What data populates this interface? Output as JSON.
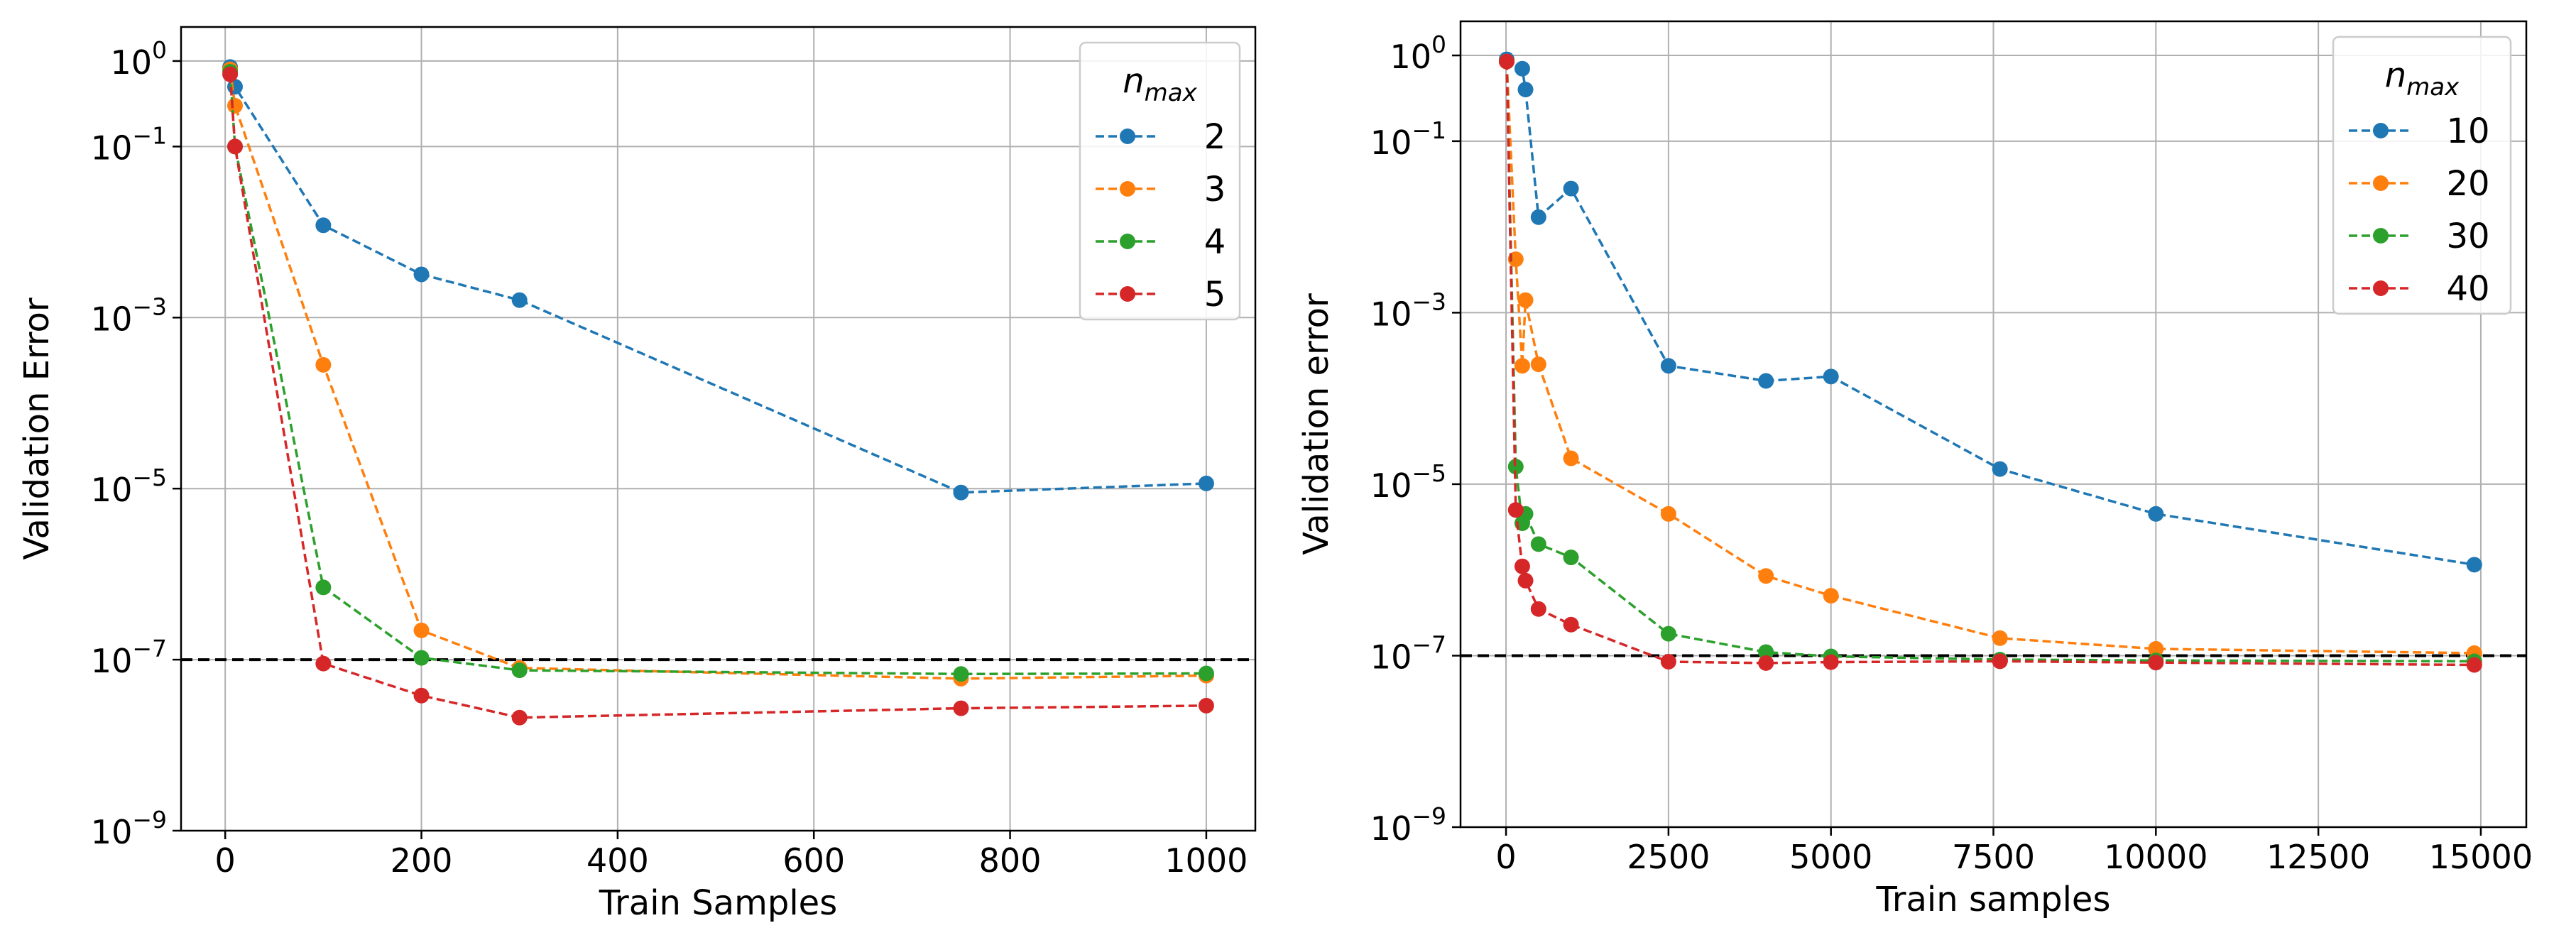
{
  "colors": {
    "series": [
      "#1f77b4",
      "#ff7f0e",
      "#2ca02c",
      "#d62728"
    ],
    "grid": "#b0b0b0",
    "axis": "#000000",
    "threshold": "#000000",
    "legend_border": "#cccccc"
  },
  "chart_data": [
    {
      "type": "line",
      "title": "",
      "xlabel": "Train Samples",
      "ylabel": "Validation Error",
      "xscale": "linear",
      "yscale": "log",
      "xlim": [
        -45,
        1050
      ],
      "ylim": [
        1e-09,
        2.5
      ],
      "xticks": [
        0,
        200,
        400,
        600,
        800,
        1000
      ],
      "xtick_labels": [
        "0",
        "200",
        "400",
        "600",
        "800",
        "1000"
      ],
      "yticks": [
        1e-09,
        1e-07,
        1e-05,
        0.001,
        0.1,
        1
      ],
      "ytick_exponents": [
        "−9",
        "−7",
        "−5",
        "−3",
        "−1",
        "0"
      ],
      "ytick_base": "10",
      "grid": true,
      "reference_line": {
        "y": 1e-07,
        "style": "dashed"
      },
      "legend": {
        "title_base": "n",
        "title_sub": "max",
        "position": "top-right"
      },
      "series": [
        {
          "name": "2",
          "x": [
            5,
            10,
            100,
            200,
            300,
            750,
            1000
          ],
          "y": [
            0.85,
            0.5,
            0.012,
            0.0032,
            0.0016,
            9e-06,
            1.15e-05
          ]
        },
        {
          "name": "3",
          "x": [
            5,
            10,
            100,
            200,
            300,
            750,
            1000
          ],
          "y": [
            0.8,
            0.3,
            0.00028,
            2.2e-07,
            8e-08,
            6e-08,
            6.5e-08
          ]
        },
        {
          "name": "4",
          "x": [
            5,
            10,
            100,
            200,
            300,
            750,
            1000
          ],
          "y": [
            0.75,
            0.1,
            7e-07,
            1.05e-07,
            7.5e-08,
            6.8e-08,
            6.9e-08
          ]
        },
        {
          "name": "5",
          "x": [
            5,
            10,
            100,
            200,
            300,
            750,
            1000
          ],
          "y": [
            0.7,
            0.1,
            9e-08,
            3.8e-08,
            2.1e-08,
            2.7e-08,
            2.9e-08
          ]
        }
      ]
    },
    {
      "type": "line",
      "title": "",
      "xlabel": "Train samples",
      "ylabel": "Validation error",
      "xscale": "linear",
      "yscale": "log",
      "xlim": [
        -700,
        15700
      ],
      "ylim": [
        1e-09,
        2.5
      ],
      "xticks": [
        0,
        2500,
        5000,
        7500,
        10000,
        12500,
        15000
      ],
      "xtick_labels": [
        "0",
        "2500",
        "5000",
        "7500",
        "10000",
        "12500",
        "15000"
      ],
      "yticks": [
        1e-09,
        1e-07,
        1e-05,
        0.001,
        0.1,
        1
      ],
      "ytick_exponents": [
        "−9",
        "−7",
        "−5",
        "−3",
        "−1",
        "0"
      ],
      "ytick_base": "10",
      "grid": true,
      "reference_line": {
        "y": 1e-07,
        "style": "dashed"
      },
      "legend": {
        "title_base": "n",
        "title_sub": "max",
        "position": "top-right"
      },
      "series": [
        {
          "name": "10",
          "x": [
            10,
            250,
            300,
            500,
            1000,
            2500,
            4000,
            5000,
            7600,
            10000,
            14900
          ],
          "y": [
            0.9,
            0.7,
            0.4,
            0.013,
            0.028,
            0.00024,
            0.00016,
            0.00018,
            1.5e-05,
            4.5e-06,
            1.15e-06
          ]
        },
        {
          "name": "20",
          "x": [
            10,
            150,
            250,
            300,
            500,
            1000,
            2500,
            4000,
            5000,
            7600,
            10000,
            14900
          ],
          "y": [
            0.85,
            0.0042,
            0.00024,
            0.0014,
            0.00025,
            2e-05,
            4.5e-06,
            8.5e-07,
            5e-07,
            1.6e-07,
            1.2e-07,
            1.07e-07
          ]
        },
        {
          "name": "30",
          "x": [
            10,
            150,
            250,
            300,
            500,
            1000,
            2500,
            4000,
            5000,
            7600,
            10000,
            14900
          ],
          "y": [
            0.85,
            1.6e-05,
            3.5e-06,
            4.5e-06,
            2e-06,
            1.4e-06,
            1.8e-07,
            1.1e-07,
            9.8e-08,
            9e-08,
            8.8e-08,
            8.6e-08
          ]
        },
        {
          "name": "40",
          "x": [
            10,
            150,
            250,
            300,
            500,
            1000,
            2500,
            4000,
            5000,
            7600,
            10000,
            14900
          ],
          "y": [
            0.85,
            5e-06,
            1.1e-06,
            7.5e-07,
            3.5e-07,
            2.3e-07,
            8.5e-08,
            8.2e-08,
            8.4e-08,
            8.6e-08,
            8.3e-08,
            7.8e-08
          ]
        }
      ]
    }
  ]
}
